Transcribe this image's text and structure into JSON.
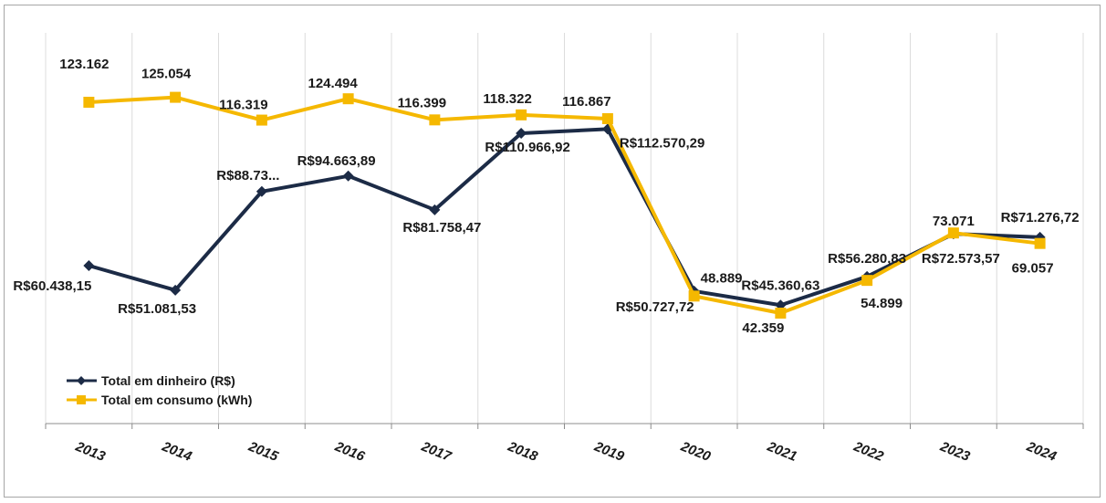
{
  "chart_data": {
    "type": "line",
    "categories": [
      "2013",
      "2014",
      "2015",
      "2016",
      "2017",
      "2018",
      "2019",
      "2020",
      "2021",
      "2022",
      "2023",
      "2024"
    ],
    "grid": "vertical",
    "legend_position": "bottom-left",
    "series": [
      {
        "name": "Total em dinheiro (R$)",
        "color": "#1c2b46",
        "marker": "diamond",
        "values": [
          60438.15,
          51081.53,
          88730,
          94663.89,
          81758.47,
          110966.92,
          112570.29,
          50727.72,
          45360.63,
          56280.83,
          72573.57,
          71276.72
        ],
        "labels": [
          "R$60.438,15",
          "R$51.081,53",
          "R$88.73...",
          "R$94.663,89",
          "R$81.758,47",
          "R$110.966,92",
          "R$112.570,29",
          "R$50.727,72",
          "R$45.360,63",
          "R$56.280,83",
          "R$72.573,57",
          "R$71.276,72"
        ]
      },
      {
        "name": "Total em consumo (kWh)",
        "color": "#f5b800",
        "marker": "square",
        "values": [
          123162,
          125054,
          116319,
          124494,
          116399,
          118322,
          116867,
          48889,
          42359,
          54899,
          73071,
          69057
        ],
        "labels": [
          "123.162",
          "125.054",
          "116.319",
          "124.494",
          "116.399",
          "118.322",
          "116.867",
          "48.889",
          "42.359",
          "54.899",
          "73.071",
          "69.057"
        ]
      }
    ]
  }
}
